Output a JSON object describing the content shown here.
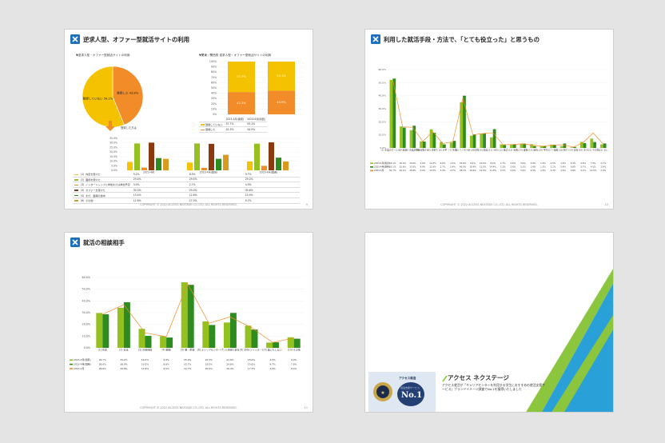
{
  "colors": {
    "orange": "#f28c28",
    "yellow": "#f5c200",
    "green": "#2e8b20",
    "lime": "#94c11f",
    "brown": "#8b3a0f",
    "blue": "#1f4e9c"
  },
  "footer": "COPYRIGHT © 2022 ACCESS NEXTAGE CO.,LTD. ALL RIGHTS RESERVED.",
  "slide1": {
    "title": "逆求人型、オファー型就活サイトの利用",
    "page": "9",
    "pie_caption": "▼逆求人型・オファー型就活サイトの利用",
    "pie": {
      "slices": [
        {
          "label": "登録していない 56.2%",
          "value": 56.2
        },
        {
          "label": "登録した 43.8%",
          "value": 43.8
        }
      ]
    },
    "arrow_label": "登録した方は",
    "stack_caption": "▼関東・関西別 逆求人型・オファー型就活サイトの利用",
    "stack_ticks": [
      "100%",
      "90%",
      "80%",
      "70%",
      "60%",
      "50%",
      "40%",
      "30%",
      "20%",
      "10%",
      "0%"
    ],
    "stack": {
      "categories": [
        "2023-4月(関東)",
        "2023-4月(関西)"
      ],
      "not_registered": [
        57.7,
        55.1
      ],
      "registered": [
        42.3,
        44.9
      ],
      "labels": {
        "not_registered": [
          "57.7%",
          "55.1%"
        ],
        "registered": [
          "42.3%",
          "44.9%"
        ]
      }
    },
    "stack_table": [
      [
        "登録していない",
        "57.7%",
        "55.1%"
      ],
      [
        "登録した",
        "42.3%",
        "44.9%"
      ]
    ],
    "bar_ticks": [
      "35.0%",
      "30.0%",
      "25.0%",
      "20.0%",
      "15.0%",
      "10.0%",
      "5.0%",
      "0.0%"
    ],
    "bar_groups": [
      "2023-4月",
      "2023-4月(関東)",
      "2023-4月(関西)"
    ],
    "bar_rows": [
      {
        "label": "（1）内定を受けた",
        "values": [
          9.2,
          8.5,
          9.7
        ],
        "texts": [
          "9.2%",
          "8.5%",
          "9.7%"
        ]
      },
      {
        "label": "（2）面接を受けた",
        "values": [
          29.4,
          29.4,
          29.2
        ],
        "texts": [
          "29.4%",
          "29.4%",
          "29.2%"
        ]
      },
      {
        "label": "（3）インターンシップに参加または参加予定",
        "values": [
          3.0,
          2.7,
          4.9
        ],
        "texts": [
          "3.0%",
          "2.7%",
          "4.9%"
        ]
      },
      {
        "label": "（4）オファーを受けた",
        "values": [
          30.3,
          29.0,
          30.6
        ],
        "texts": [
          "30.3%",
          "29.0%",
          "30.6%"
        ]
      },
      {
        "label": "（5）まだ、面接の途中",
        "values": [
          13.4,
          12.6,
          13.9
        ],
        "texts": [
          "13.4%",
          "12.6%",
          "13.9%"
        ]
      },
      {
        "label": "（6）その他",
        "values": [
          12.6,
          17.0,
          9.7
        ],
        "texts": [
          "12.6%",
          "17.0%",
          "9.7%"
        ]
      }
    ]
  },
  "slide2": {
    "title": "利用した就活手段・方法で、「とても役立った」と思うもの",
    "page": "10",
    "ticks": [
      "60.0%",
      "50.0%",
      "40.0%",
      "30.0%",
      "20.0%",
      "10.0%",
      "0.0%"
    ],
    "categories": [
      "(1) 企業のホームページ",
      "(2) 合説",
      "(3) 企業説明会",
      "(4) 就職ナビ",
      "(5) 逆求人",
      "(6) 大学",
      "(7) 先輩",
      "(8) インターン",
      "(9) OB訪問",
      "(10) 面談",
      "(11) SNS",
      "(12) 雑誌",
      "(13) 新聞",
      "(14) 書籍",
      "(15) 動画",
      "(16) 学内",
      "(17) 転職",
      "(18) 紹介",
      "(19) 家族",
      "(20) 友人",
      "(21) その他",
      "(22) なし"
    ],
    "series": [
      {
        "name": "2023-4月(関東)",
        "values": [
          52.1,
          16.4,
          13.6,
          5.0,
          14.3,
          4.6,
          4.1,
          35.0,
          9.4,
          10.9,
          8.1,
          2.7,
          2.6,
          3.0,
          2.9,
          1.3,
          2.5,
          1.4,
          0.4,
          4.6,
          7.2,
          2.7
        ]
      },
      {
        "name": "2023-4月(関西)",
        "values": [
          53.1,
          15.6,
          17.0,
          4.9,
          11.6,
          2.7,
          5.4,
          40.0,
          10.4,
          11.0,
          14.4,
          2.3,
          2.6,
          3.3,
          1.4,
          1.3,
          2.1,
          3.4,
          0.8,
          3.7,
          4.5,
          3.4
        ]
      },
      {
        "name": "2023-4月",
        "values": [
          52.7,
          16.1,
          15.8,
          5.0,
          12.5,
          3.4,
          4.7,
          38.1,
          10.0,
          11.0,
          11.6,
          2.5,
          2.6,
          3.2,
          2.0,
          1.3,
          2.3,
          2.4,
          0.6,
          4.1,
          11.5,
          2.9
        ]
      }
    ],
    "row_texts": [
      [
        "52.1%",
        "16.4%",
        "13.6%",
        "5.0%",
        "14.3%",
        "4.6%",
        "4.1%",
        "35.0%",
        "9.4%",
        "10.9%",
        "8.1%",
        "2.7%",
        "2.6%",
        "3.0%",
        "2.9%",
        "1.3%",
        "2.5%",
        "1.4%",
        "0.4%",
        "4.6%",
        "7.2%",
        "2.7%"
      ],
      [
        "53.1%",
        "15.6%",
        "17.0%",
        "4.9%",
        "11.6%",
        "2.7%",
        "5.4%",
        "40.0%",
        "10.4%",
        "11.0%",
        "14.4%",
        "2.3%",
        "2.6%",
        "3.3%",
        "1.4%",
        "1.3%",
        "2.1%",
        "3.4%",
        "0.8%",
        "3.7%",
        "4.5%",
        "3.4%"
      ],
      [
        "52.7%",
        "16.1%",
        "15.8%",
        "5.0%",
        "12.5%",
        "3.4%",
        "4.7%",
        "38.1%",
        "10.0%",
        "11.0%",
        "11.6%",
        "2.5%",
        "2.6%",
        "3.2%",
        "2.0%",
        "1.3%",
        "2.3%",
        "2.4%",
        "0.6%",
        "4.1%",
        "11.5%",
        "2.9%"
      ]
    ]
  },
  "slide3": {
    "title": "就活の相談相手",
    "page": "11",
    "ticks": [
      "60.0%",
      "50.0%",
      "40.0%",
      "30.0%",
      "20.0%",
      "10.0%",
      "0.0%"
    ],
    "categories": [
      "(1) 先輩",
      "(2) 友達",
      "(3) 兄弟姉妹",
      "(4) 親族",
      "(5) 親・家族",
      "(6) キャリアセンター",
      "(7) 人材紹介会社",
      "(8) SNS(ツイッター)",
      "(9) 誰にもしない",
      "(10) その他"
    ],
    "series": [
      {
        "name": "2023-4月(関東)",
        "values": [
          29.7,
          34.2,
          16.2,
          9.9,
          55.9,
          22.5,
          21.6,
          18.9,
          4.5,
          9.0
        ]
      },
      {
        "name": "2023-4月(関西)",
        "values": [
          28.6,
          38.9,
          10.2,
          8.8,
          53.7,
          19.5,
          29.8,
          15.6,
          4.7,
          7.8
        ]
      },
      {
        "name": "2023-4月",
        "values": [
          28.6,
          36.8,
          12.8,
          9.5,
          54.7,
          20.9,
          26.4,
          17.3,
          4.6,
          8.4
        ]
      }
    ],
    "row_texts": [
      [
        "29.7%",
        "34.2%",
        "16.2%",
        "9.9%",
        "55.9%",
        "22.5%",
        "21.6%",
        "18.9%",
        "4.5%",
        "9.0%"
      ],
      [
        "28.6%",
        "38.9%",
        "10.2%",
        "8.8%",
        "53.7%",
        "19.5%",
        "29.8%",
        "15.6%",
        "4.7%",
        "7.8%"
      ],
      [
        "28.6%",
        "36.8%",
        "12.8%",
        "9.5%",
        "54.7%",
        "20.9%",
        "26.4%",
        "17.3%",
        "4.6%",
        "8.4%"
      ]
    ]
  },
  "slide4": {
    "brand": "アクセス ネクステージ",
    "tagline": "アクセス就活が「キャリアセンターを利用する学生におすすめの就活支援サービス」ブランドイメージ調査でNo.1を獲得いたしました",
    "badge_brand": "アクセス就活",
    "badge_no1": "No.1",
    "badge_small": "就活支援サービス"
  }
}
